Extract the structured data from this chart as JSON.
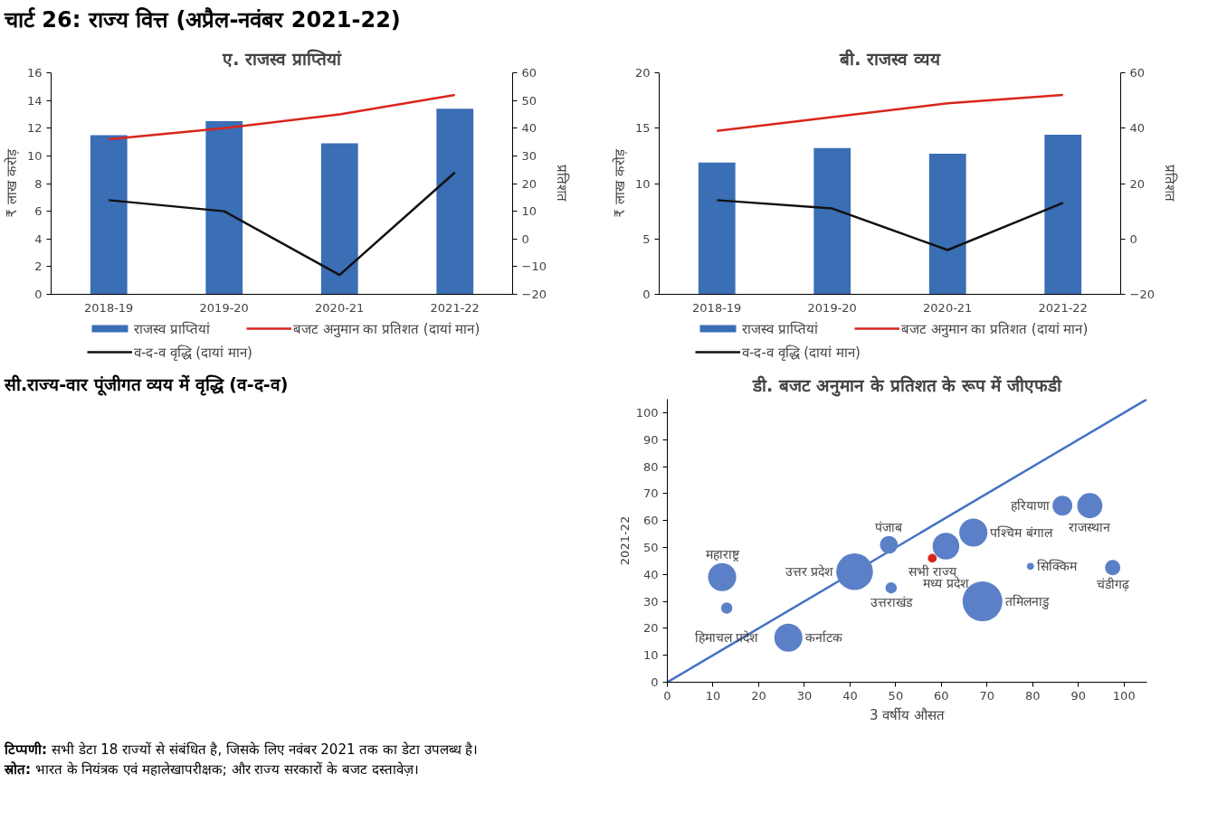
{
  "chart_data": [
    {
      "type": "other",
      "title": "चार्ट 26: राज्य वित्त (अप्रैल-नवंबर 2021-22)"
    },
    {
      "type": "bar",
      "title": "ए. राजस्व प्राप्तियां",
      "categories": [
        "2018-19",
        "2019-20",
        "2020-21",
        "2021-22"
      ],
      "ylabel": "₹ लाख करोड़",
      "y2label": "प्रतिशत",
      "ylim": [
        0,
        16
      ],
      "yticks": [
        0,
        2,
        4,
        6,
        8,
        10,
        12,
        14,
        16
      ],
      "y2lim": [
        -20,
        60
      ],
      "y2ticks": [
        -20,
        -10,
        0,
        10,
        20,
        30,
        40,
        50,
        60
      ],
      "legend": "bottom",
      "series": [
        {
          "name": "राजस्व प्राप्तियां",
          "type": "bar",
          "color": "#3a6eb5",
          "values": [
            11.5,
            12.5,
            10.9,
            13.4
          ]
        },
        {
          "name": "बजट अनुमान का प्रतिशत (दायां मान)",
          "type": "line",
          "axis": "y2",
          "color": "#d9261c",
          "values": [
            36,
            40,
            45,
            52
          ]
        },
        {
          "name": "व-द-व वृद्धि (दायां मान)",
          "type": "line",
          "axis": "y2",
          "color": "#111111",
          "values": [
            14,
            10,
            -13,
            24
          ]
        }
      ]
    },
    {
      "type": "bar",
      "title": "बी. राजस्व व्यय",
      "categories": [
        "2018-19",
        "2019-20",
        "2020-21",
        "2021-22"
      ],
      "ylabel": "₹ लाख करोड़",
      "y2label": "प्रतिशत",
      "ylim": [
        0,
        20
      ],
      "yticks": [
        0,
        5,
        10,
        15,
        20
      ],
      "y2lim": [
        -20,
        60
      ],
      "y2ticks": [
        -20,
        0,
        20,
        40,
        60
      ],
      "legend": "bottom",
      "series": [
        {
          "name": "राजस्व प्राप्तियां",
          "type": "bar",
          "color": "#3a6eb5",
          "values": [
            11.9,
            13.2,
            12.7,
            14.4
          ]
        },
        {
          "name": "बजट अनुमान का प्रतिशत (दायां मान)",
          "type": "line",
          "axis": "y2",
          "color": "#d9261c",
          "values": [
            39,
            44,
            49,
            52
          ]
        },
        {
          "name": "व-द-व वृद्धि (दायां मान)",
          "type": "line",
          "axis": "y2",
          "color": "#111111",
          "values": [
            14,
            11,
            -4,
            13
          ]
        }
      ]
    },
    {
      "type": "other",
      "title": "सी.राज्य-वार पूंजीगत व्यय में वृद्धि (व-द-व)"
    },
    {
      "type": "bubble",
      "title": "डी. बजट अनुमान के प्रतिशत के रूप में जीएफडी",
      "xlabel": "3 वर्षीय औसत",
      "ylabel": "2021-22",
      "xlim": [
        0,
        105
      ],
      "ylim": [
        0,
        105
      ],
      "xticks": [
        0,
        10,
        20,
        30,
        40,
        50,
        60,
        70,
        80,
        90,
        100
      ],
      "yticks": [
        0,
        10,
        20,
        30,
        40,
        50,
        60,
        70,
        80,
        90,
        100
      ],
      "series": [
        {
          "type": "line",
          "x": [
            0,
            105
          ],
          "values": [
            0,
            105
          ],
          "color": "#4472c4"
        },
        {
          "type": "bubble",
          "x": [
            12,
            13,
            26.5,
            41,
            48.5,
            49,
            61,
            67,
            58,
            79.5,
            86.5,
            92.5,
            97.5,
            69
          ],
          "values": [
            39,
            27.5,
            16.5,
            41,
            51,
            35,
            50.5,
            55.5,
            46,
            43,
            65.5,
            65.5,
            42.5,
            30
          ],
          "sizes": [
            0.5,
            0.08,
            0.5,
            0.85,
            0.2,
            0.08,
            0.45,
            0.5,
            0.05,
            0.03,
            0.25,
            0.4,
            0.15,
            1
          ],
          "colors": [
            "#5b80c8",
            "#5b80c8",
            "#5b80c8",
            "#5b80c8",
            "#5b80c8",
            "#5b80c8",
            "#5b80c8",
            "#5b80c8",
            "#d9261c",
            "#5b80c8",
            "#5b80c8",
            "#5b80c8",
            "#5b80c8",
            "#5b80c8"
          ]
        }
      ],
      "annotations": [
        {
          "text": "महाराष्ट्र",
          "x": 12,
          "y": 39
        },
        {
          "text": "हिमाचल प्रदेश",
          "x": 13,
          "y": 27.5
        },
        {
          "text": "कर्नाटक",
          "x": 26.5,
          "y": 16.5
        },
        {
          "text": "उत्तर प्रदेश",
          "x": 41,
          "y": 41
        },
        {
          "text": "पंजाब",
          "x": 48.5,
          "y": 51
        },
        {
          "text": "उत्तराखंड",
          "x": 49,
          "y": 35
        },
        {
          "text": "सभी राज्य",
          "x": 58,
          "y": 46
        },
        {
          "text": "मध्य प्रदेश",
          "x": 61,
          "y": 50.5
        },
        {
          "text": "पश्चिम बंगाल",
          "x": 67,
          "y": 55.5
        },
        {
          "text": "हरियाणा",
          "x": 86.5,
          "y": 65.5
        },
        {
          "text": "राजस्थान",
          "x": 92.5,
          "y": 65.5
        },
        {
          "text": "सिक्किम",
          "x": 79.5,
          "y": 43
        },
        {
          "text": "चंडीगढ़",
          "x": 97.5,
          "y": 42.5
        },
        {
          "text": "तमिलनाडु",
          "x": 69,
          "y": 30
        }
      ]
    },
    {
      "type": "other",
      "annotations": [
        "टिप्पणी: सभी डेटा 18 राज्यों से संबंधित है, जिसके लिए नवंबर 2021 तक का डेटा उपलब्ध है।",
        "स्रोत: भारत के नियंत्रक एवं महालेखापरीक्षक; और राज्य सरकारों के बजट दस्तावेज़।"
      ]
    }
  ]
}
